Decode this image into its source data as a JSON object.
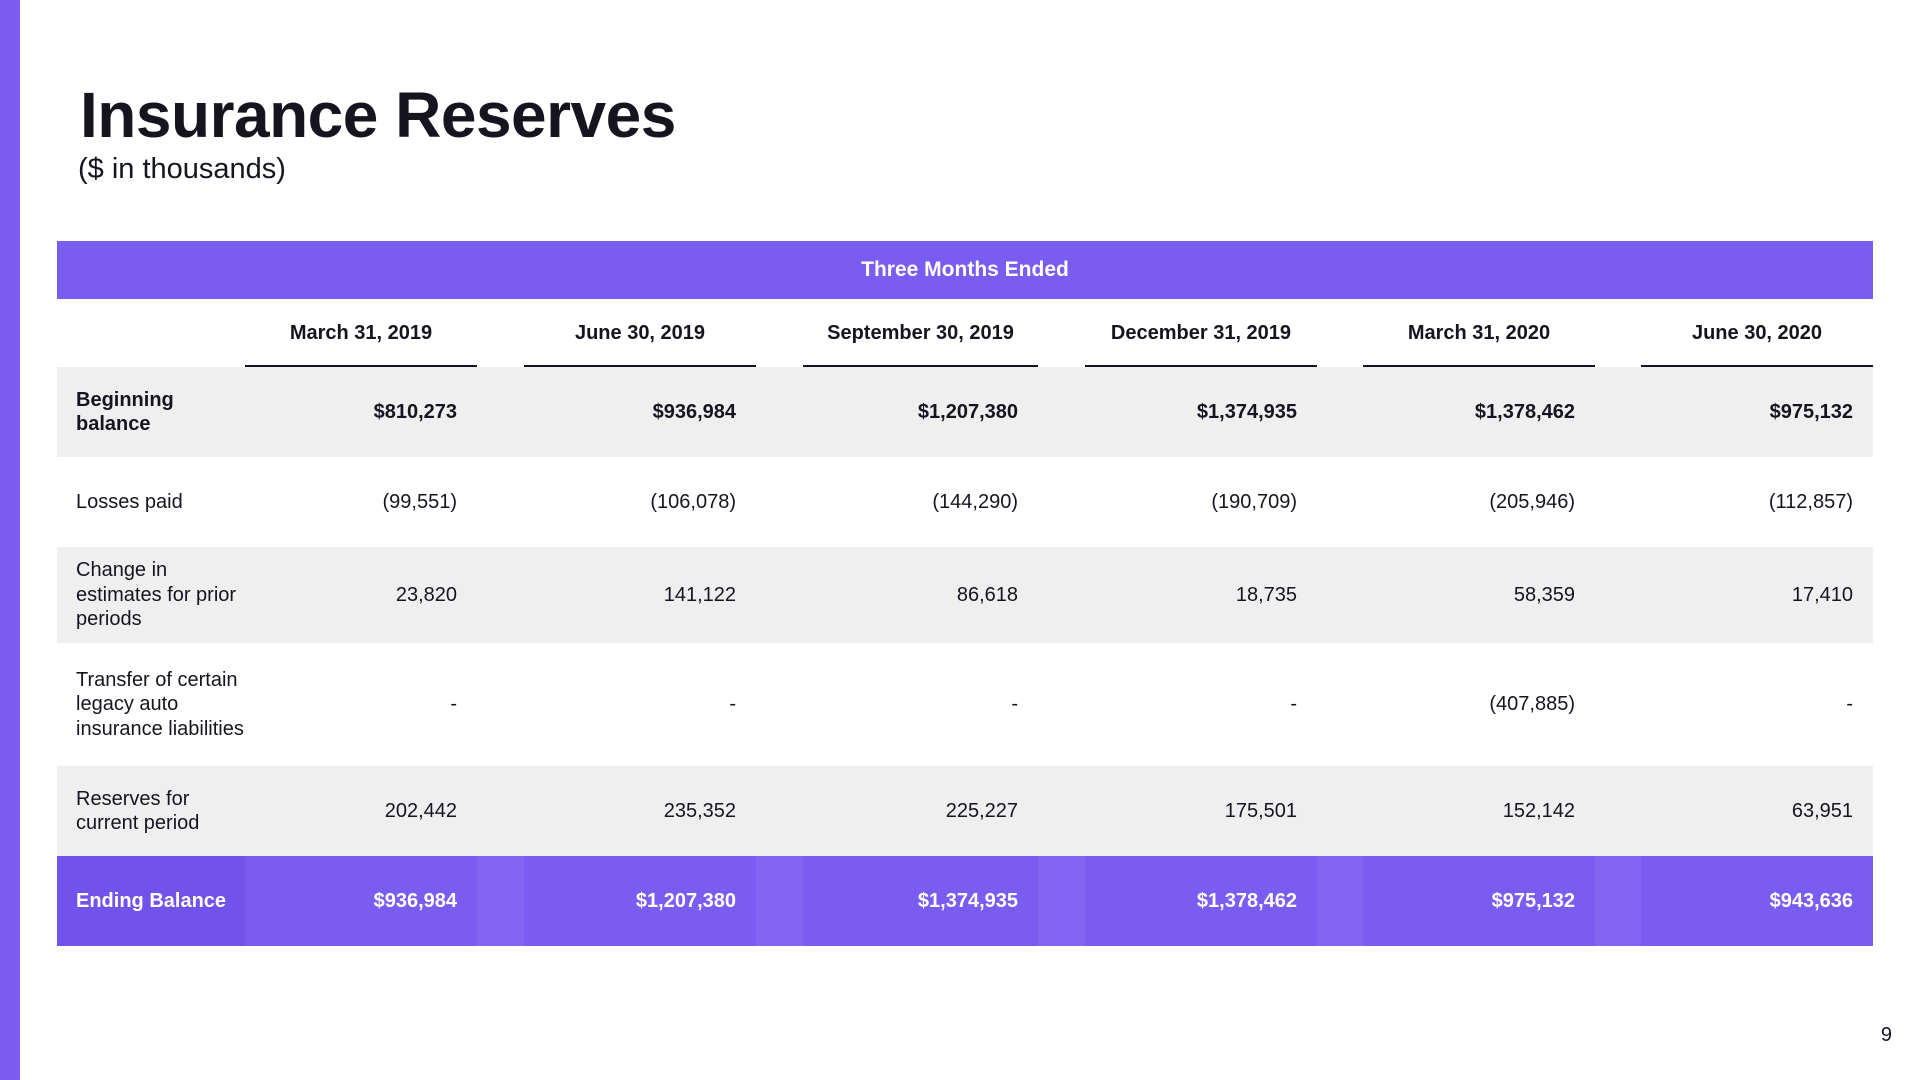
{
  "slide": {
    "title": "Insurance Reserves",
    "subtitle": "($ in thousands)",
    "page_number": "9",
    "accent_color": "#7a5cf0"
  },
  "table": {
    "band_label": "Three Months Ended",
    "columns": [
      "March 31, 2019",
      "June 30, 2019",
      "September 30, 2019",
      "December 31, 2019",
      "March 31, 2020",
      "June 30, 2020"
    ],
    "rows": [
      {
        "label": "Beginning balance",
        "values": [
          "$810,273",
          "$936,984",
          "$1,207,380",
          "$1,374,935",
          "$1,378,462",
          "$975,132"
        ]
      },
      {
        "label": "Losses paid",
        "values": [
          "(99,551)",
          "(106,078)",
          "(144,290)",
          "(190,709)",
          "(205,946)",
          "(112,857)"
        ]
      },
      {
        "label": "Change in estimates for prior periods",
        "values": [
          "23,820",
          "141,122",
          "86,618",
          "18,735",
          "58,359",
          "17,410"
        ]
      },
      {
        "label": "Transfer of certain legacy auto insurance liabilities",
        "values": [
          "-",
          "-",
          "-",
          "-",
          "(407,885)",
          "-"
        ]
      },
      {
        "label": "Reserves for current period",
        "values": [
          "202,442",
          "235,352",
          "225,227",
          "175,501",
          "152,142",
          "63,951"
        ]
      },
      {
        "label": "Ending Balance",
        "values": [
          "$936,984",
          "$1,207,380",
          "$1,374,935",
          "$1,378,462",
          "$975,132",
          "$943,636"
        ]
      }
    ]
  }
}
